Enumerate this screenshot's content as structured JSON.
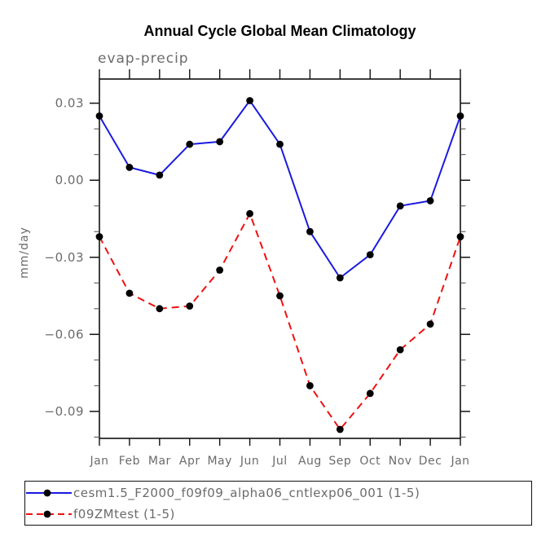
{
  "title": "Annual Cycle Global Mean Climatology",
  "subtitle": "evap-precip",
  "y_axis_title": "mm/day",
  "colors": {
    "series1": "#1a1ae0",
    "series2": "#ee1111",
    "marker": "#000000",
    "axis": "#111111",
    "minor_tick": "#555555",
    "label_gray": "#6b6b6b",
    "title_black": "#000000"
  },
  "chart_data": {
    "type": "line",
    "title": "Annual Cycle Global Mean Climatology",
    "subtitle": "evap-precip",
    "xlabel": "",
    "ylabel": "mm/day",
    "categories": [
      "Jan",
      "Feb",
      "Mar",
      "Apr",
      "May",
      "Jun",
      "Jul",
      "Aug",
      "Sep",
      "Oct",
      "Nov",
      "Dec",
      "Jan"
    ],
    "series": [
      {
        "name": "cesm1.5_F2000_f09f09_alpha06_cntlexp06_001 (1-5)",
        "color": "#1a1ae0",
        "line_style": "solid",
        "marker": "filled-circle",
        "values": [
          0.025,
          0.005,
          0.002,
          0.014,
          0.015,
          0.031,
          0.014,
          -0.02,
          -0.038,
          -0.029,
          -0.01,
          -0.008,
          0.025
        ]
      },
      {
        "name": "f09ZMtest (1-5)",
        "color": "#ee1111",
        "line_style": "dashed",
        "marker": "filled-circle",
        "values": [
          -0.022,
          -0.044,
          -0.05,
          -0.049,
          -0.035,
          -0.013,
          -0.045,
          -0.08,
          -0.097,
          -0.083,
          -0.066,
          -0.056,
          -0.022
        ]
      }
    ],
    "ylim": [
      -0.1005,
      0.0394
    ],
    "yticks": [
      0.03,
      0.0,
      -0.03,
      -0.06,
      -0.09
    ],
    "ytick_labels": [
      "0.03",
      "0.00",
      "−0.03",
      "−0.06",
      "−0.09"
    ],
    "minor_tick_step": 0.01,
    "grid": false,
    "legend_position": "bottom-left",
    "legend_entries": [
      "cesm1.5_F2000_f09f09_alpha06_cntlexp06_001 (1-5)",
      "f09ZMtest (1-5)"
    ]
  }
}
